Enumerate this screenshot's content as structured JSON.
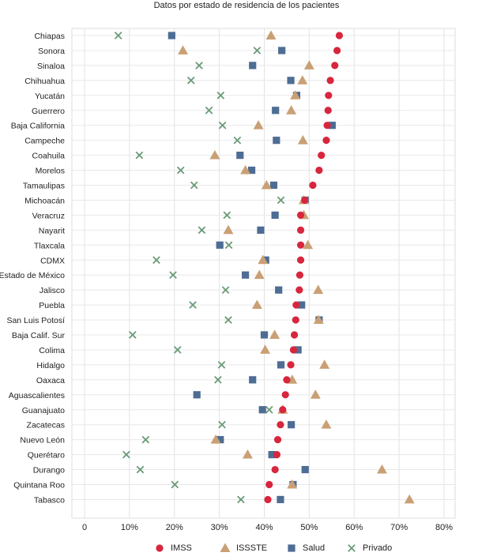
{
  "chart_data": {
    "type": "scatter",
    "title": "Datos por estado de residencia de los pacientes",
    "xlabel": "",
    "ylabel": "",
    "xlim": [
      0,
      0.8
    ],
    "x_ticks": [
      "0",
      "10%",
      "20%",
      "30%",
      "40%",
      "50%",
      "60%",
      "70%",
      "80%"
    ],
    "grid": true,
    "legend_position": "bottom",
    "categories": [
      "Chiapas",
      "Sonora",
      "Sinaloa",
      "Chihuahua",
      "Yucatán",
      "Guerrero",
      "Baja California",
      "Campeche",
      "Coahuila",
      "Morelos",
      "Tamaulipas",
      "Michoacán",
      "Veracruz",
      "Nayarit",
      "Tlaxcala",
      "CDMX",
      "Estado de México",
      "Jalisco",
      "Puebla",
      "San Luis Potosí",
      "Baja Calif. Sur",
      "Colima",
      "Hidalgo",
      "Oaxaca",
      "Aguascalientes",
      "Guanajuato",
      "Zacatecas",
      "Nuevo León",
      "Querétaro",
      "Durango",
      "Quintana Roo",
      "Tabasco"
    ],
    "series": [
      {
        "name": "IMSS",
        "color": "#d7263d",
        "marker": "circle",
        "values": [
          0.567,
          0.562,
          0.557,
          0.547,
          0.543,
          0.542,
          0.54,
          0.538,
          0.527,
          0.522,
          0.508,
          0.49,
          0.481,
          0.481,
          0.481,
          0.481,
          0.479,
          0.478,
          0.471,
          0.47,
          0.467,
          0.465,
          0.459,
          0.45,
          0.447,
          0.441,
          0.436,
          0.43,
          0.428,
          0.424,
          0.411,
          0.408
        ]
      },
      {
        "name": "ISSSTE",
        "color": "#c9a075",
        "marker": "triangle",
        "values": [
          0.415,
          0.219,
          0.5,
          0.485,
          0.469,
          0.46,
          0.387,
          0.486,
          0.29,
          0.358,
          0.405,
          0.488,
          0.488,
          0.32,
          0.497,
          0.397,
          0.389,
          0.52,
          0.384,
          0.521,
          0.423,
          0.402,
          0.534,
          0.462,
          0.514,
          0.441,
          0.538,
          0.292,
          0.363,
          0.662,
          0.462,
          0.723
        ]
      },
      {
        "name": "Salud",
        "color": "#4e6d94",
        "marker": "square",
        "values": [
          0.194,
          0.439,
          0.374,
          0.459,
          0.472,
          0.425,
          0.551,
          0.427,
          0.346,
          0.372,
          0.421,
          0.491,
          0.424,
          0.392,
          0.301,
          0.403,
          0.358,
          0.432,
          0.483,
          0.522,
          0.4,
          0.475,
          0.437,
          0.374,
          0.25,
          0.396,
          0.46,
          0.302,
          0.417,
          0.491,
          0.464,
          0.436
        ]
      },
      {
        "name": "Privado",
        "color": "#6a9a78",
        "marker": "x",
        "values": [
          0.075,
          0.384,
          0.255,
          0.237,
          0.303,
          0.277,
          0.307,
          0.34,
          0.122,
          0.214,
          0.244,
          0.437,
          0.317,
          0.261,
          0.321,
          0.16,
          0.197,
          0.314,
          0.241,
          0.32,
          0.107,
          0.207,
          0.305,
          0.297,
          null,
          0.411,
          0.306,
          0.136,
          0.093,
          0.124,
          0.201,
          0.348
        ]
      }
    ]
  }
}
